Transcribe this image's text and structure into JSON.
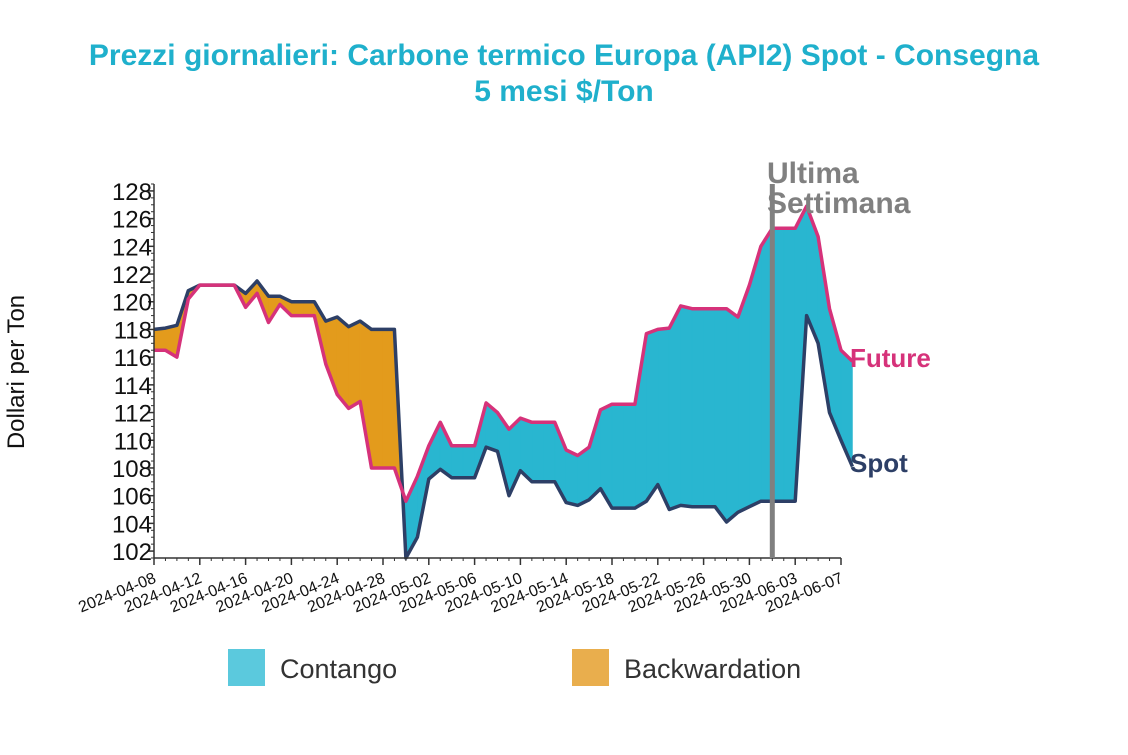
{
  "chart_data": {
    "type": "area",
    "title_line1": "Prezzi giornalieri: Carbone termico Europa (API2) Spot - Consegna",
    "title_line2": "5 mesi $/Ton",
    "ylabel": "Dollari per Ton",
    "ylim": [
      101.5,
      128.5
    ],
    "yticks": [
      102,
      104,
      106,
      108,
      110,
      112,
      114,
      116,
      118,
      120,
      122,
      124,
      126,
      128
    ],
    "xlim": [
      "2024-04-08",
      "2024-06-07"
    ],
    "xticks": [
      "2024-04-08",
      "2024-04-12",
      "2024-04-16",
      "2024-04-20",
      "2024-04-24",
      "2024-04-28",
      "2024-05-02",
      "2024-05-06",
      "2024-05-10",
      "2024-05-14",
      "2024-05-18",
      "2024-05-22",
      "2024-05-26",
      "2024-05-30",
      "2024-06-03",
      "2024-06-07"
    ],
    "series": [
      {
        "name": "Spot",
        "color": "#2d3f66",
        "points": [
          [
            "2024-04-08",
            118.0
          ],
          [
            "2024-04-09",
            118.1
          ],
          [
            "2024-04-10",
            118.3
          ],
          [
            "2024-04-11",
            120.8
          ],
          [
            "2024-04-12",
            121.2
          ],
          [
            "2024-04-13",
            121.2
          ],
          [
            "2024-04-14",
            121.2
          ],
          [
            "2024-04-15",
            121.2
          ],
          [
            "2024-04-16",
            120.6
          ],
          [
            "2024-04-17",
            121.5
          ],
          [
            "2024-04-18",
            120.4
          ],
          [
            "2024-04-19",
            120.4
          ],
          [
            "2024-04-20",
            120.0
          ],
          [
            "2024-04-21",
            120.0
          ],
          [
            "2024-04-22",
            120.0
          ],
          [
            "2024-04-23",
            118.6
          ],
          [
            "2024-04-24",
            118.9
          ],
          [
            "2024-04-25",
            118.2
          ],
          [
            "2024-04-26",
            118.6
          ],
          [
            "2024-04-27",
            118.0
          ],
          [
            "2024-04-28",
            118.0
          ],
          [
            "2024-04-29",
            118.0
          ],
          [
            "2024-04-30",
            101.5
          ],
          [
            "2024-05-01",
            103.0
          ],
          [
            "2024-05-02",
            107.2
          ],
          [
            "2024-05-03",
            107.9
          ],
          [
            "2024-05-04",
            107.3
          ],
          [
            "2024-05-05",
            107.3
          ],
          [
            "2024-05-06",
            107.3
          ],
          [
            "2024-05-07",
            109.5
          ],
          [
            "2024-05-08",
            109.2
          ],
          [
            "2024-05-09",
            106.0
          ],
          [
            "2024-05-10",
            107.8
          ],
          [
            "2024-05-11",
            107.0
          ],
          [
            "2024-05-12",
            107.0
          ],
          [
            "2024-05-13",
            107.0
          ],
          [
            "2024-05-14",
            105.5
          ],
          [
            "2024-05-15",
            105.3
          ],
          [
            "2024-05-16",
            105.7
          ],
          [
            "2024-05-17",
            106.5
          ],
          [
            "2024-05-18",
            105.1
          ],
          [
            "2024-05-19",
            105.1
          ],
          [
            "2024-05-20",
            105.1
          ],
          [
            "2024-05-21",
            105.6
          ],
          [
            "2024-05-22",
            106.8
          ],
          [
            "2024-05-23",
            105.0
          ],
          [
            "2024-05-24",
            105.3
          ],
          [
            "2024-05-25",
            105.2
          ],
          [
            "2024-05-26",
            105.2
          ],
          [
            "2024-05-27",
            105.2
          ],
          [
            "2024-05-28",
            104.1
          ],
          [
            "2024-05-29",
            104.8
          ],
          [
            "2024-05-30",
            105.2
          ],
          [
            "2024-05-31",
            105.6
          ],
          [
            "2024-06-01",
            105.6
          ],
          [
            "2024-06-02",
            105.6
          ],
          [
            "2024-06-03",
            105.6
          ],
          [
            "2024-06-04",
            119.0
          ],
          [
            "2024-06-05",
            117.0
          ],
          [
            "2024-06-06",
            112.0
          ],
          [
            "2024-06-07",
            110.0
          ],
          [
            "2024-06-08",
            108.1
          ]
        ]
      },
      {
        "name": "Future",
        "color": "#d6327a",
        "points": [
          [
            "2024-04-08",
            116.5
          ],
          [
            "2024-04-09",
            116.5
          ],
          [
            "2024-04-10",
            116.0
          ],
          [
            "2024-04-11",
            120.2
          ],
          [
            "2024-04-12",
            121.2
          ],
          [
            "2024-04-13",
            121.2
          ],
          [
            "2024-04-14",
            121.2
          ],
          [
            "2024-04-15",
            121.2
          ],
          [
            "2024-04-16",
            119.6
          ],
          [
            "2024-04-17",
            120.6
          ],
          [
            "2024-04-18",
            118.5
          ],
          [
            "2024-04-19",
            119.8
          ],
          [
            "2024-04-20",
            119.0
          ],
          [
            "2024-04-21",
            119.0
          ],
          [
            "2024-04-22",
            119.0
          ],
          [
            "2024-04-23",
            115.5
          ],
          [
            "2024-04-24",
            113.3
          ],
          [
            "2024-04-25",
            112.3
          ],
          [
            "2024-04-26",
            112.8
          ],
          [
            "2024-04-27",
            108.0
          ],
          [
            "2024-04-28",
            108.0
          ],
          [
            "2024-04-29",
            108.0
          ],
          [
            "2024-04-30",
            105.6
          ],
          [
            "2024-05-01",
            107.4
          ],
          [
            "2024-05-02",
            109.6
          ],
          [
            "2024-05-03",
            111.3
          ],
          [
            "2024-05-04",
            109.6
          ],
          [
            "2024-05-05",
            109.6
          ],
          [
            "2024-05-06",
            109.6
          ],
          [
            "2024-05-07",
            112.7
          ],
          [
            "2024-05-08",
            112.0
          ],
          [
            "2024-05-09",
            110.8
          ],
          [
            "2024-05-10",
            111.6
          ],
          [
            "2024-05-11",
            111.3
          ],
          [
            "2024-05-12",
            111.3
          ],
          [
            "2024-05-13",
            111.3
          ],
          [
            "2024-05-14",
            109.3
          ],
          [
            "2024-05-15",
            108.9
          ],
          [
            "2024-05-16",
            109.5
          ],
          [
            "2024-05-17",
            112.2
          ],
          [
            "2024-05-18",
            112.6
          ],
          [
            "2024-05-19",
            112.6
          ],
          [
            "2024-05-20",
            112.6
          ],
          [
            "2024-05-21",
            117.7
          ],
          [
            "2024-05-22",
            118.0
          ],
          [
            "2024-05-23",
            118.1
          ],
          [
            "2024-05-24",
            119.7
          ],
          [
            "2024-05-25",
            119.5
          ],
          [
            "2024-05-26",
            119.5
          ],
          [
            "2024-05-27",
            119.5
          ],
          [
            "2024-05-28",
            119.5
          ],
          [
            "2024-05-29",
            118.9
          ],
          [
            "2024-05-30",
            121.2
          ],
          [
            "2024-05-31",
            124.0
          ],
          [
            "2024-06-01",
            125.3
          ],
          [
            "2024-06-02",
            125.3
          ],
          [
            "2024-06-03",
            125.3
          ],
          [
            "2024-06-04",
            126.9
          ],
          [
            "2024-06-05",
            124.7
          ],
          [
            "2024-06-06",
            119.5
          ],
          [
            "2024-06-07",
            116.5
          ],
          [
            "2024-06-08",
            115.7
          ]
        ]
      }
    ],
    "fills": [
      {
        "name": "Contango",
        "color": "#29b6d0",
        "legend_color": "#5bc9dd"
      },
      {
        "name": "Backwardation",
        "color": "#e39b1c",
        "legend_color": "#e9ae4d"
      }
    ],
    "marker_date": "2024-06-01",
    "marker_color": "#808080",
    "annotation_line1": "Ultima",
    "annotation_line2": "Settimana"
  }
}
